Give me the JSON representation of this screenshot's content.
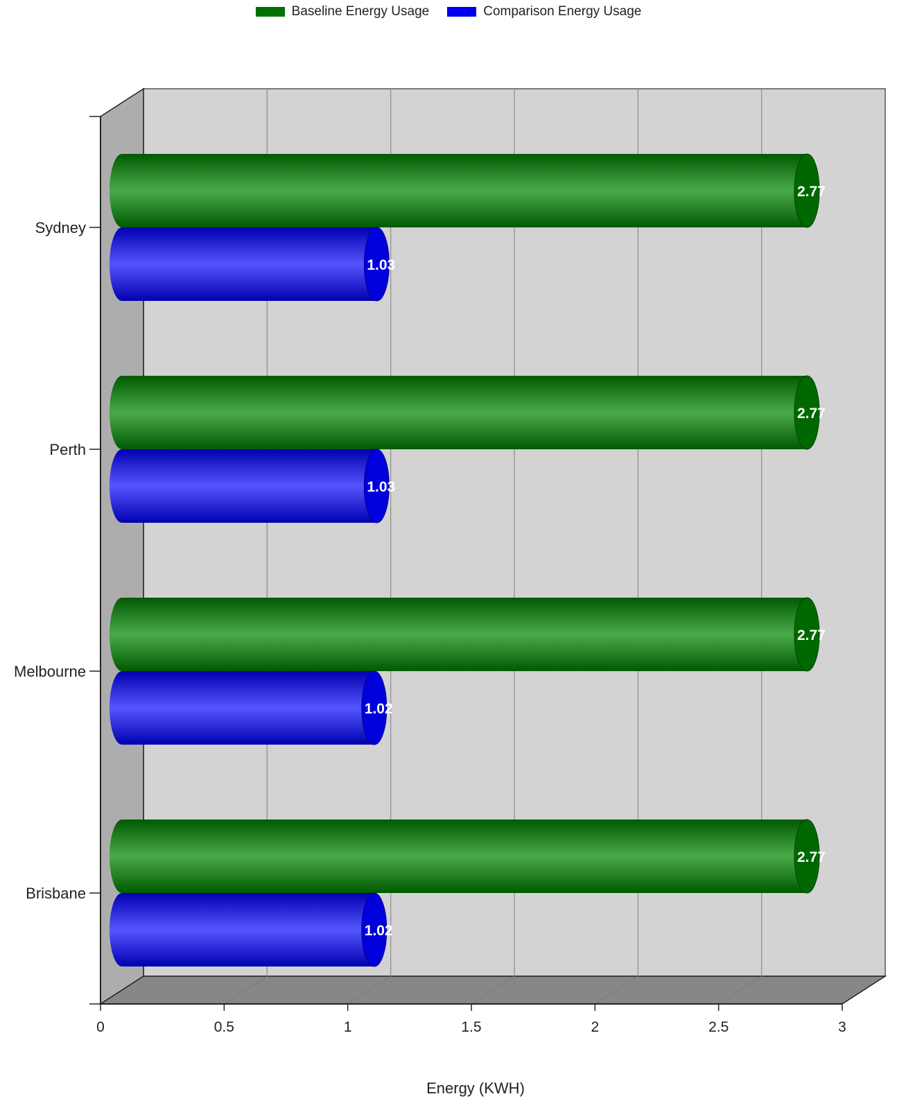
{
  "chart_data": {
    "type": "bar",
    "orientation": "horizontal",
    "style": "3d-cylinder",
    "categories": [
      "Sydney",
      "Perth",
      "Melbourne",
      "Brisbane"
    ],
    "series": [
      {
        "name": "Baseline Energy Usage",
        "color": "#007000",
        "values": [
          2.77,
          2.77,
          2.77,
          2.77
        ],
        "labels": [
          "2.77",
          "2.77",
          "2.77",
          "2.77"
        ]
      },
      {
        "name": "Comparison Energy Usage",
        "color": "#0000ee",
        "values": [
          1.03,
          1.03,
          1.02,
          1.02
        ],
        "labels": [
          "1.03",
          "1.03",
          "1.02",
          "1.02"
        ]
      }
    ],
    "xlabel": "Energy (KWH)",
    "ylabel": "",
    "xlim": [
      0,
      3
    ],
    "xticks": [
      "0",
      "0.5",
      "1",
      "1.5",
      "2",
      "2.5",
      "3"
    ],
    "grid": true,
    "legend_position": "top-center"
  }
}
